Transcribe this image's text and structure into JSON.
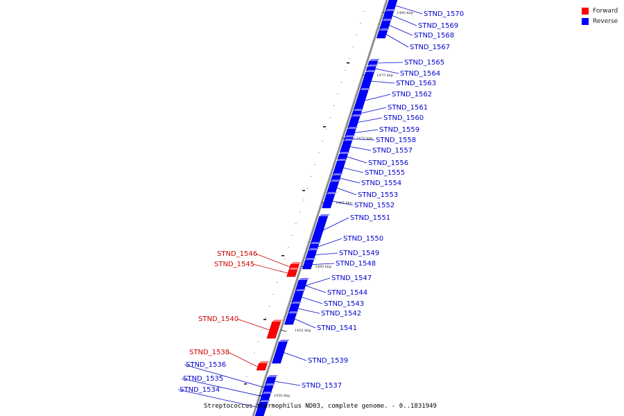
{
  "caption": "Streptococcus thermophilus ND03, complete genome. - 0..1831949",
  "legend": {
    "forward": {
      "label": "Forward",
      "color": "#ff0000"
    },
    "reverse": {
      "label": "Reverse",
      "color": "#0000ff"
    }
  },
  "colors": {
    "forward_text": "#cc0000",
    "reverse_text": "#0000cc",
    "axis": "#888888"
  },
  "axis_ticks": [
    "1480 kbp",
    "1475 kbp",
    "1470 kbp",
    "1465 kbp",
    "1460 kbp",
    "1455 kbp",
    "1450 kbp"
  ],
  "genes": [
    {
      "name": "STND_1570",
      "strand": "reverse"
    },
    {
      "name": "STND_1569",
      "strand": "reverse"
    },
    {
      "name": "STND_1568",
      "strand": "reverse"
    },
    {
      "name": "STND_1567",
      "strand": "reverse"
    },
    {
      "name": "STND_1565",
      "strand": "reverse"
    },
    {
      "name": "STND_1564",
      "strand": "reverse"
    },
    {
      "name": "STND_1563",
      "strand": "reverse"
    },
    {
      "name": "STND_1562",
      "strand": "reverse"
    },
    {
      "name": "STND_1561",
      "strand": "reverse"
    },
    {
      "name": "STND_1560",
      "strand": "reverse"
    },
    {
      "name": "STND_1559",
      "strand": "reverse"
    },
    {
      "name": "STND_1558",
      "strand": "reverse"
    },
    {
      "name": "STND_1557",
      "strand": "reverse"
    },
    {
      "name": "STND_1556",
      "strand": "reverse"
    },
    {
      "name": "STND_1555",
      "strand": "reverse"
    },
    {
      "name": "STND_1554",
      "strand": "reverse"
    },
    {
      "name": "STND_1553",
      "strand": "reverse"
    },
    {
      "name": "STND_1552",
      "strand": "reverse"
    },
    {
      "name": "STND_1551",
      "strand": "reverse"
    },
    {
      "name": "STND_1550",
      "strand": "reverse"
    },
    {
      "name": "STND_1549",
      "strand": "reverse"
    },
    {
      "name": "STND_1548",
      "strand": "reverse"
    },
    {
      "name": "STND_1547",
      "strand": "reverse"
    },
    {
      "name": "STND_1546",
      "strand": "forward"
    },
    {
      "name": "STND_1545",
      "strand": "forward"
    },
    {
      "name": "STND_1544",
      "strand": "reverse"
    },
    {
      "name": "STND_1543",
      "strand": "reverse"
    },
    {
      "name": "STND_1542",
      "strand": "reverse"
    },
    {
      "name": "STND_1541",
      "strand": "reverse"
    },
    {
      "name": "STND_1540",
      "strand": "forward"
    },
    {
      "name": "STND_1539",
      "strand": "reverse"
    },
    {
      "name": "STND_1538",
      "strand": "forward"
    },
    {
      "name": "STND_1537",
      "strand": "reverse"
    },
    {
      "name": "STND_1536",
      "strand": "reverse"
    },
    {
      "name": "STND_1535",
      "strand": "reverse"
    },
    {
      "name": "STND_1534",
      "strand": "reverse"
    }
  ]
}
